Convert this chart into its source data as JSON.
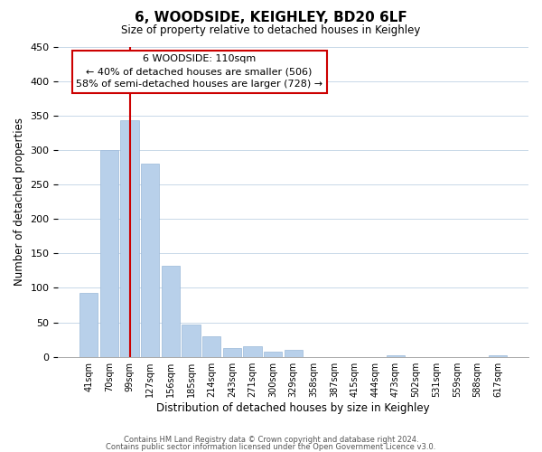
{
  "title": "6, WOODSIDE, KEIGHLEY, BD20 6LF",
  "subtitle": "Size of property relative to detached houses in Keighley",
  "xlabel": "Distribution of detached houses by size in Keighley",
  "ylabel": "Number of detached properties",
  "bin_labels": [
    "41sqm",
    "70sqm",
    "99sqm",
    "127sqm",
    "156sqm",
    "185sqm",
    "214sqm",
    "243sqm",
    "271sqm",
    "300sqm",
    "329sqm",
    "358sqm",
    "387sqm",
    "415sqm",
    "444sqm",
    "473sqm",
    "502sqm",
    "531sqm",
    "559sqm",
    "588sqm",
    "617sqm"
  ],
  "bar_heights": [
    93,
    300,
    343,
    280,
    132,
    47,
    30,
    13,
    15,
    8,
    10,
    0,
    0,
    0,
    0,
    2,
    0,
    0,
    0,
    0,
    2
  ],
  "bar_color": "#b8d0ea",
  "bar_edge_color": "#9ab8d8",
  "vline_x": 2.0,
  "vline_color": "#cc0000",
  "ylim": [
    0,
    450
  ],
  "yticks": [
    0,
    50,
    100,
    150,
    200,
    250,
    300,
    350,
    400,
    450
  ],
  "annotation_title": "6 WOODSIDE: 110sqm",
  "annotation_line1": "← 40% of detached houses are smaller (506)",
  "annotation_line2": "58% of semi-detached houses are larger (728) →",
  "annotation_box_color": "#ffffff",
  "annotation_box_edge": "#cc0000",
  "footer_line1": "Contains HM Land Registry data © Crown copyright and database right 2024.",
  "footer_line2": "Contains public sector information licensed under the Open Government Licence v3.0.",
  "background_color": "#ffffff",
  "grid_color": "#c8d8e8"
}
